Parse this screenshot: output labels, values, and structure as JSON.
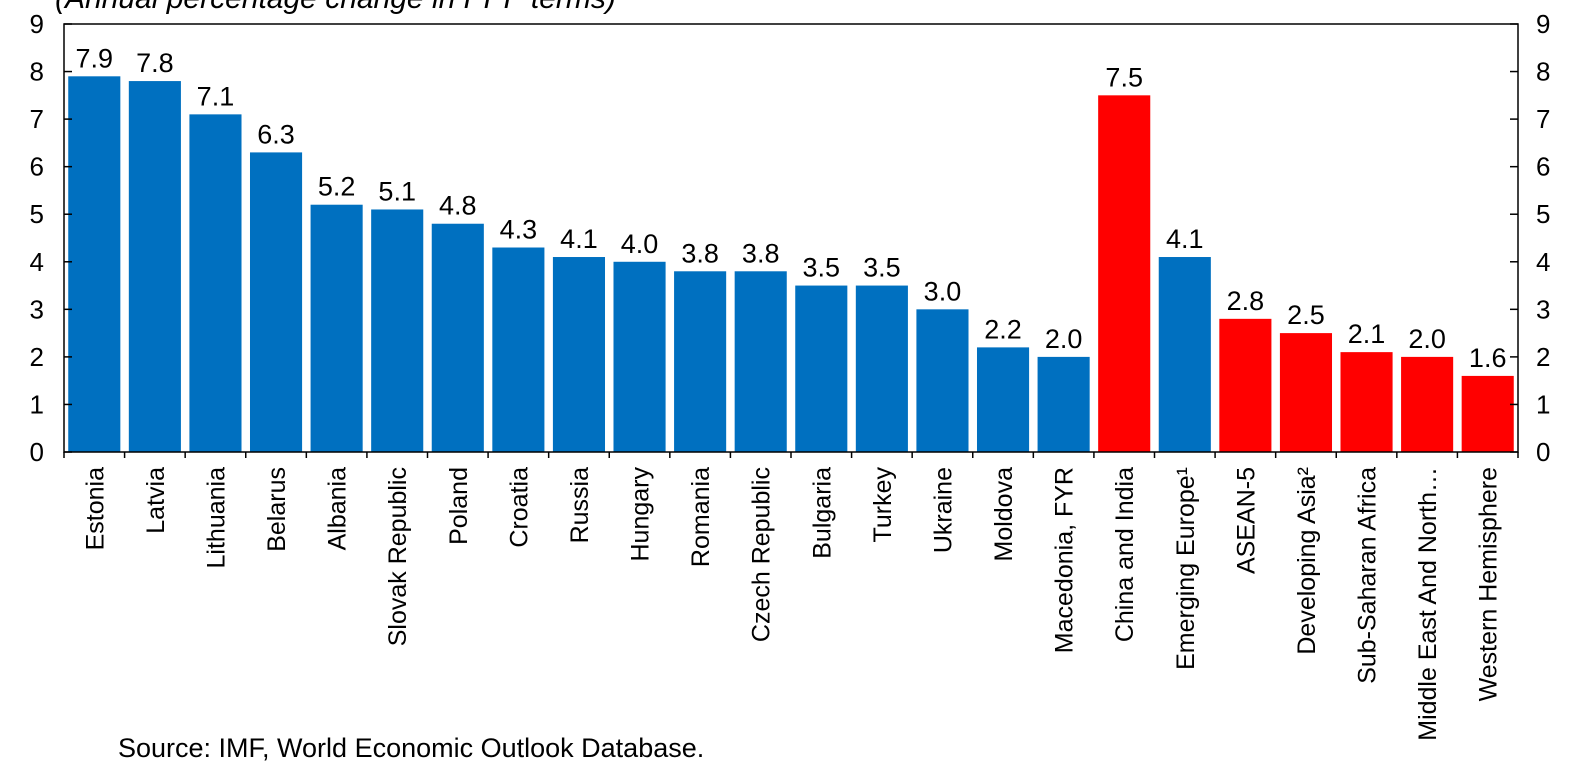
{
  "header": {
    "subtitle": "(Annual percentage change in PPP terms)"
  },
  "footer": {
    "source": "Source: IMF, World Economic Outlook Database."
  },
  "chart_data": {
    "type": "bar",
    "title": "",
    "subtitle": "(Annual percentage change in PPP terms)",
    "xlabel": "",
    "ylabel": "",
    "ylim": [
      0,
      9
    ],
    "yticks": [
      0,
      1,
      2,
      3,
      4,
      5,
      6,
      7,
      8,
      9
    ],
    "yticks_right": true,
    "grid": false,
    "legend": "none",
    "colors": {
      "country": "#0070C0",
      "highlight": "#FF0000",
      "emerging_europe": "#0070C0"
    },
    "categories": [
      "Estonia",
      "Latvia",
      "Lithuania",
      "Belarus",
      "Albania",
      "Slovak Republic",
      "Poland",
      "Croatia",
      "Russia",
      "Hungary",
      "Romania",
      "Czech Republic",
      "Bulgaria",
      "Turkey",
      "Ukraine",
      "Moldova",
      "Macedonia, FYR",
      "China and India",
      "Emerging Europe¹",
      "ASEAN-5",
      "Developing Asia²",
      "Sub-Saharan Africa",
      "Middle East And North…",
      "Western Hemisphere"
    ],
    "values": [
      7.9,
      7.8,
      7.1,
      6.3,
      5.2,
      5.1,
      4.8,
      4.3,
      4.1,
      4.0,
      3.8,
      3.8,
      3.5,
      3.5,
      3.0,
      2.2,
      2.0,
      7.5,
      4.1,
      2.8,
      2.5,
      2.1,
      2.0,
      1.6
    ],
    "labels": [
      "7.9",
      "7.8",
      "7.1",
      "6.3",
      "5.2",
      "5.1",
      "4.8",
      "4.3",
      "4.1",
      "4.0",
      "3.8",
      "3.8",
      "3.5",
      "3.5",
      "3.0",
      "2.2",
      "2.0",
      "7.5",
      "4.1",
      "2.8",
      "2.5",
      "2.1",
      "2.0",
      "1.6"
    ],
    "bar_colors": [
      "#0070C0",
      "#0070C0",
      "#0070C0",
      "#0070C0",
      "#0070C0",
      "#0070C0",
      "#0070C0",
      "#0070C0",
      "#0070C0",
      "#0070C0",
      "#0070C0",
      "#0070C0",
      "#0070C0",
      "#0070C0",
      "#0070C0",
      "#0070C0",
      "#0070C0",
      "#FF0000",
      "#0070C0",
      "#FF0000",
      "#FF0000",
      "#FF0000",
      "#FF0000",
      "#FF0000"
    ]
  }
}
